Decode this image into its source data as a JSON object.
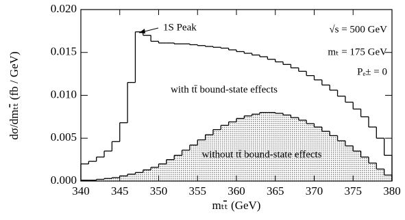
{
  "chart_data": {
    "type": "histogram",
    "x_label": "mₜₜ̄ (GeV)",
    "y_label": "dσ/dmₜₜ̄ (fb / GeV)",
    "bins": [
      340,
      341,
      342,
      343,
      344,
      345,
      346,
      347,
      348,
      349,
      350,
      351,
      352,
      353,
      354,
      355,
      356,
      357,
      358,
      359,
      360,
      361,
      362,
      363,
      364,
      365,
      366,
      367,
      368,
      369,
      370,
      371,
      372,
      373,
      374,
      375,
      376,
      377,
      378,
      379,
      380
    ],
    "series": [
      {
        "name": "with tt̄ bound-state effects",
        "color": "#000000",
        "filled": false,
        "values": [
          0.002,
          0.0023,
          0.0028,
          0.0035,
          0.0046,
          0.0068,
          0.0115,
          0.0174,
          0.017,
          0.0163,
          0.0161,
          0.0161,
          0.016,
          0.016,
          0.0159,
          0.0158,
          0.0157,
          0.0156,
          0.0155,
          0.0153,
          0.0151,
          0.0149,
          0.0147,
          0.0145,
          0.0142,
          0.0139,
          0.0136,
          0.0132,
          0.0128,
          0.0123,
          0.0118,
          0.0112,
          0.0106,
          0.0099,
          0.0092,
          0.0084,
          0.0075,
          0.0063,
          0.005,
          0.003
        ]
      },
      {
        "name": "without tt̄ bound-state effects",
        "color": "#000000",
        "filled": true,
        "values": [
          0.0001,
          0.0001,
          0.0002,
          0.0003,
          0.0004,
          0.0006,
          0.0008,
          0.001,
          0.0013,
          0.0016,
          0.002,
          0.0025,
          0.003,
          0.0036,
          0.0042,
          0.0048,
          0.0054,
          0.006,
          0.0065,
          0.0069,
          0.0073,
          0.0076,
          0.0078,
          0.008,
          0.008,
          0.0079,
          0.0077,
          0.0074,
          0.0071,
          0.0067,
          0.0063,
          0.0058,
          0.0053,
          0.0047,
          0.0041,
          0.0035,
          0.0028,
          0.0021,
          0.0014,
          0.0007
        ]
      }
    ],
    "annotations": [
      "1S Peak",
      "√s = 500 GeV",
      "mₜ = 175 GeV",
      "Pₑ± = 0"
    ],
    "xlim": [
      340,
      380
    ],
    "xticks": [
      340,
      345,
      350,
      355,
      360,
      365,
      370,
      375,
      380
    ],
    "ylim": [
      0,
      0.02
    ],
    "yticks": [
      {
        "value": 0,
        "label": "0.000"
      },
      0.005,
      {
        "value": 0.01,
        "label": "0.010"
      },
      0.015,
      {
        "value": 0.02,
        "label": "0.020"
      }
    ]
  }
}
